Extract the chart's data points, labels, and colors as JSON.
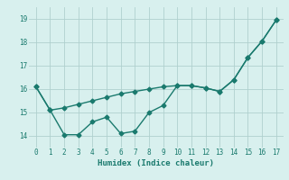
{
  "line1_x": [
    0,
    1,
    2,
    3,
    4,
    5,
    6,
    7,
    8,
    9,
    10,
    11,
    12,
    13,
    14,
    15,
    16,
    17
  ],
  "line1_y": [
    16.1,
    15.1,
    15.2,
    15.35,
    15.5,
    15.65,
    15.8,
    15.9,
    16.0,
    16.1,
    16.15,
    16.15,
    16.05,
    15.9,
    16.4,
    17.35,
    18.05,
    18.95
  ],
  "line2_x": [
    0,
    1,
    2,
    3,
    4,
    5,
    6,
    7,
    8,
    9,
    10,
    11,
    12,
    13,
    14,
    15,
    16,
    17
  ],
  "line2_y": [
    16.1,
    15.1,
    14.05,
    14.05,
    14.6,
    14.8,
    14.1,
    14.2,
    15.0,
    15.3,
    16.15,
    16.15,
    16.05,
    15.9,
    16.4,
    17.35,
    18.05,
    18.95
  ],
  "color": "#1a7a6e",
  "bg_color": "#d8f0ee",
  "grid_color": "#b0d0ce",
  "xlabel": "Humidex (Indice chaleur)",
  "ylim": [
    13.5,
    19.5
  ],
  "xlim": [
    -0.5,
    17.5
  ],
  "yticks": [
    14,
    15,
    16,
    17,
    18,
    19
  ],
  "xticks": [
    0,
    1,
    2,
    3,
    4,
    5,
    6,
    7,
    8,
    9,
    10,
    11,
    12,
    13,
    14,
    15,
    16,
    17
  ],
  "marker": "D",
  "markersize": 2.5,
  "linewidth": 1.0
}
